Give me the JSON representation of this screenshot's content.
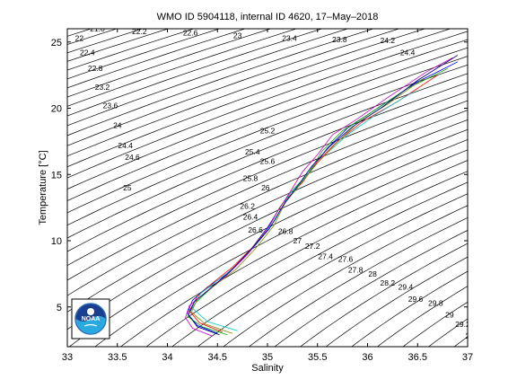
{
  "chart_data": {
    "type": "line",
    "title": "WMO ID 5904118, internal ID 4620, 17–May–2018",
    "xlabel": "Salinity",
    "ylabel": "Temperature [°C]",
    "xlim": [
      33,
      37
    ],
    "ylim": [
      2,
      26
    ],
    "grid": false,
    "x_ticks": [
      "33",
      "33.5",
      "34",
      "34.5",
      "35",
      "35.5",
      "36",
      "36.5",
      "37"
    ],
    "y_ticks": [
      "5",
      "10",
      "15",
      "20",
      "25"
    ],
    "isopycnal_labels": [
      {
        "text": "21.8",
        "s": 33.3,
        "t": 25.8
      },
      {
        "text": "22",
        "s": 33.12,
        "t": 25.1
      },
      {
        "text": "22.2",
        "s": 33.72,
        "t": 25.6
      },
      {
        "text": "22.6",
        "s": 34.23,
        "t": 25.5
      },
      {
        "text": "23",
        "s": 34.7,
        "t": 25.3
      },
      {
        "text": "23.4",
        "s": 35.22,
        "t": 25.1
      },
      {
        "text": "23.8",
        "s": 35.72,
        "t": 25.0
      },
      {
        "text": "24.2",
        "s": 36.2,
        "t": 24.9
      },
      {
        "text": "24.4",
        "s": 36.4,
        "t": 24.0
      },
      {
        "text": "22.4",
        "s": 33.2,
        "t": 24.0
      },
      {
        "text": "22.8",
        "s": 33.28,
        "t": 22.8
      },
      {
        "text": "23.2",
        "s": 33.35,
        "t": 21.4
      },
      {
        "text": "23.6",
        "s": 33.43,
        "t": 20.0
      },
      {
        "text": "24",
        "s": 33.5,
        "t": 18.5
      },
      {
        "text": "24.4",
        "s": 33.58,
        "t": 17.0
      },
      {
        "text": "24.6",
        "s": 33.65,
        "t": 16.1
      },
      {
        "text": "25",
        "s": 33.6,
        "t": 13.8
      },
      {
        "text": "25.2",
        "s": 35.0,
        "t": 18.1
      },
      {
        "text": "25.4",
        "s": 34.85,
        "t": 16.5
      },
      {
        "text": "25.6",
        "s": 35.0,
        "t": 15.8
      },
      {
        "text": "25.8",
        "s": 34.83,
        "t": 14.5
      },
      {
        "text": "26",
        "s": 34.98,
        "t": 13.8
      },
      {
        "text": "26.2",
        "s": 34.8,
        "t": 12.4
      },
      {
        "text": "26.4",
        "s": 34.83,
        "t": 11.6
      },
      {
        "text": "26.6",
        "s": 34.88,
        "t": 10.6
      },
      {
        "text": "26.8",
        "s": 35.18,
        "t": 10.5
      },
      {
        "text": "27",
        "s": 35.3,
        "t": 9.8
      },
      {
        "text": "27.2",
        "s": 35.45,
        "t": 9.4
      },
      {
        "text": "27.4",
        "s": 35.58,
        "t": 8.6
      },
      {
        "text": "27.6",
        "s": 35.78,
        "t": 8.4
      },
      {
        "text": "27.8",
        "s": 35.88,
        "t": 7.6
      },
      {
        "text": "28",
        "s": 36.05,
        "t": 7.3
      },
      {
        "text": "28.2",
        "s": 36.2,
        "t": 6.6
      },
      {
        "text": "29.4",
        "s": 36.38,
        "t": 6.3
      },
      {
        "text": "29.6",
        "s": 36.48,
        "t": 5.4
      },
      {
        "text": "29.8",
        "s": 36.68,
        "t": 5.1
      },
      {
        "text": "29",
        "s": 36.82,
        "t": 4.2
      },
      {
        "text": "29.2",
        "s": 36.95,
        "t": 3.5
      },
      {
        "text": "29.4",
        "s": 37.05,
        "t": 2.6
      }
    ],
    "series": [
      {
        "color": "#0000ff",
        "points": [
          [
            34.5,
            3.0
          ],
          [
            34.3,
            3.6
          ],
          [
            34.2,
            4.5
          ],
          [
            34.25,
            5.5
          ],
          [
            34.4,
            6.5
          ],
          [
            34.6,
            7.5
          ],
          [
            34.8,
            9.0
          ],
          [
            35.0,
            11.0
          ],
          [
            35.15,
            12.8
          ],
          [
            35.3,
            14.0
          ],
          [
            35.45,
            15.5
          ],
          [
            35.6,
            17.0
          ],
          [
            35.8,
            18.5
          ],
          [
            36.1,
            20.0
          ],
          [
            36.5,
            22.0
          ],
          [
            36.9,
            23.5
          ]
        ]
      },
      {
        "color": "#ff0000",
        "points": [
          [
            34.55,
            3.1
          ],
          [
            34.32,
            3.8
          ],
          [
            34.22,
            4.7
          ],
          [
            34.3,
            5.8
          ],
          [
            34.45,
            6.8
          ],
          [
            34.65,
            8.0
          ],
          [
            34.85,
            9.5
          ],
          [
            35.05,
            11.3
          ],
          [
            35.2,
            13.2
          ],
          [
            35.35,
            14.4
          ],
          [
            35.5,
            16.0
          ],
          [
            35.7,
            17.5
          ],
          [
            35.95,
            19.0
          ],
          [
            36.3,
            20.5
          ],
          [
            36.7,
            22.5
          ]
        ]
      },
      {
        "color": "#00aa00",
        "points": [
          [
            34.6,
            2.9
          ],
          [
            34.35,
            3.5
          ],
          [
            34.2,
            4.3
          ],
          [
            34.28,
            5.3
          ],
          [
            34.42,
            6.3
          ],
          [
            34.62,
            7.6
          ],
          [
            34.82,
            9.2
          ],
          [
            35.0,
            10.8
          ],
          [
            35.12,
            12.5
          ],
          [
            35.25,
            13.8
          ],
          [
            35.4,
            15.0
          ],
          [
            35.55,
            16.8
          ],
          [
            35.75,
            18.3
          ],
          [
            36.0,
            19.5
          ],
          [
            36.4,
            21.5
          ],
          [
            36.8,
            23.0
          ]
        ]
      },
      {
        "color": "#00cccc",
        "points": [
          [
            34.7,
            3.2
          ],
          [
            34.4,
            3.9
          ],
          [
            34.25,
            4.9
          ],
          [
            34.33,
            6.0
          ],
          [
            34.5,
            7.0
          ],
          [
            34.7,
            8.2
          ],
          [
            34.9,
            9.8
          ],
          [
            35.08,
            11.6
          ],
          [
            35.22,
            13.5
          ],
          [
            35.38,
            14.8
          ],
          [
            35.55,
            16.3
          ],
          [
            35.8,
            18.0
          ],
          [
            36.1,
            19.6
          ],
          [
            36.45,
            21.2
          ]
        ]
      },
      {
        "color": "#cc00cc",
        "points": [
          [
            34.45,
            2.8
          ],
          [
            34.25,
            3.4
          ],
          [
            34.18,
            4.2
          ],
          [
            34.22,
            5.1
          ],
          [
            34.38,
            6.1
          ],
          [
            34.58,
            7.3
          ],
          [
            34.78,
            8.8
          ],
          [
            34.97,
            10.5
          ],
          [
            35.1,
            12.2
          ],
          [
            35.22,
            13.6
          ],
          [
            35.35,
            15.2
          ],
          [
            35.5,
            16.5
          ],
          [
            35.65,
            18.0
          ],
          [
            35.9,
            19.2
          ],
          [
            36.2,
            20.8
          ],
          [
            36.6,
            22.8
          ],
          [
            36.85,
            23.8
          ]
        ]
      },
      {
        "color": "#888800",
        "points": [
          [
            34.65,
            3.0
          ],
          [
            34.38,
            3.7
          ],
          [
            34.24,
            4.6
          ],
          [
            34.3,
            5.6
          ],
          [
            34.47,
            6.6
          ],
          [
            34.68,
            7.8
          ],
          [
            34.88,
            9.4
          ],
          [
            35.06,
            11.1
          ],
          [
            35.18,
            12.9
          ],
          [
            35.32,
            14.2
          ],
          [
            35.48,
            15.7
          ],
          [
            35.68,
            17.3
          ],
          [
            35.9,
            18.9
          ],
          [
            36.2,
            20.3
          ],
          [
            36.55,
            22.2
          ]
        ]
      },
      {
        "color": "#000088",
        "points": [
          [
            34.52,
            2.9
          ],
          [
            34.3,
            3.5
          ],
          [
            34.21,
            4.4
          ],
          [
            34.27,
            5.4
          ],
          [
            34.43,
            6.4
          ],
          [
            34.63,
            7.7
          ],
          [
            34.83,
            9.3
          ],
          [
            35.02,
            10.9
          ],
          [
            35.16,
            12.7
          ],
          [
            35.3,
            14.1
          ],
          [
            35.44,
            15.6
          ],
          [
            35.62,
            17.1
          ],
          [
            35.85,
            18.6
          ],
          [
            36.15,
            20.1
          ],
          [
            36.5,
            22.1
          ],
          [
            36.9,
            24.0
          ]
        ]
      }
    ]
  }
}
